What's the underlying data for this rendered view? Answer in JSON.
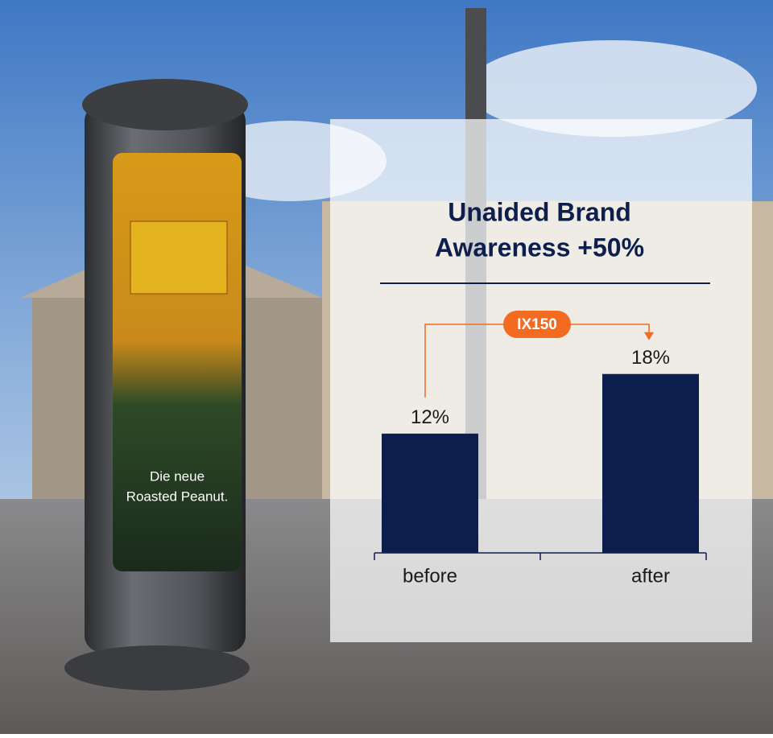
{
  "chart_data": {
    "type": "bar",
    "title": [
      "Unaided Brand",
      "Awareness +50%"
    ],
    "categories": [
      "before",
      "after"
    ],
    "values": [
      12,
      18
    ],
    "value_labels": [
      "12%",
      "18%"
    ],
    "color": "#0c1e4d",
    "annotation": "IX150",
    "annotation_color": "#f36a21"
  },
  "photo": {
    "ad_text": [
      "Die neue",
      "Roasted Peanut."
    ]
  }
}
